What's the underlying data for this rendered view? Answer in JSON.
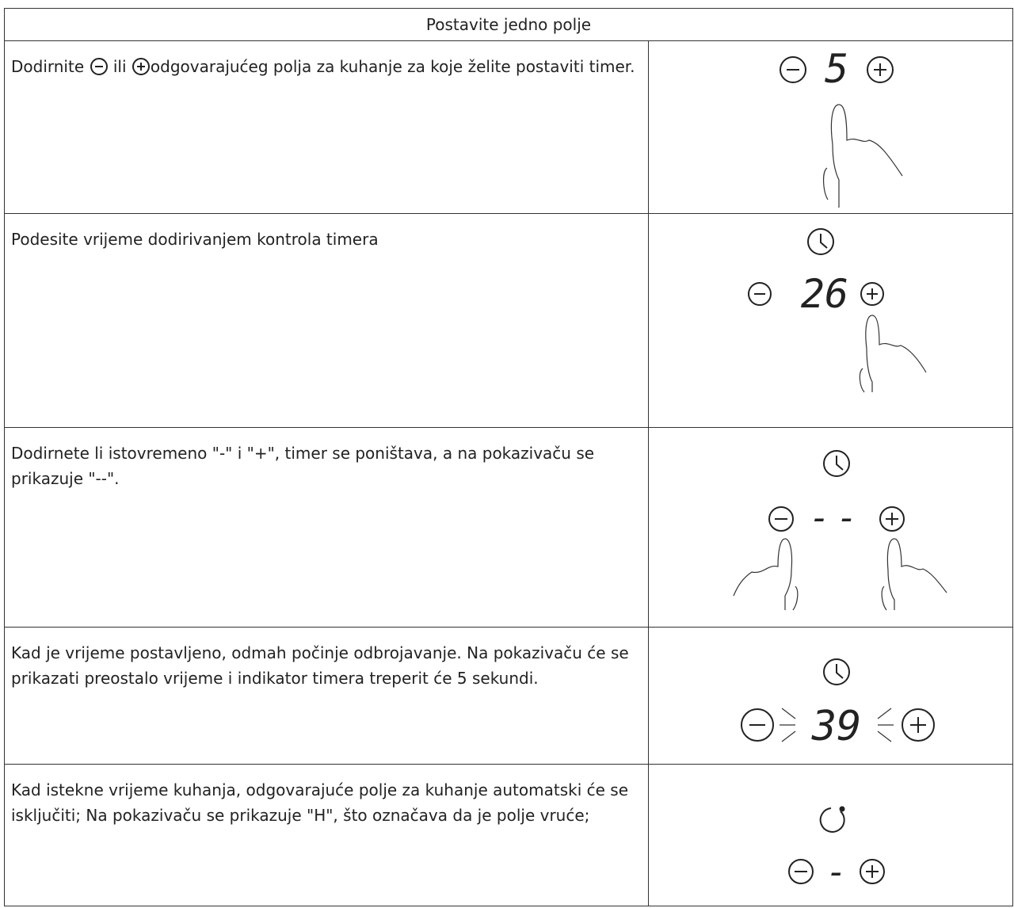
{
  "table": {
    "header": "Postavite jedno polje",
    "rows": [
      {
        "text": [
          "Dodirnite",
          "ili",
          "odgovarajućeg polja za kuhanje za koje želite postaviti timer."
        ],
        "display": "5"
      },
      {
        "text": "Podesite vrijeme dodirivanjem kontrola timera",
        "display": "26"
      },
      {
        "text": "Dodirnete li istovremeno \"-\" i \"+\", timer se poništava, a na pokazivaču se prikazuje \"--\".",
        "display": "--"
      },
      {
        "text": "Kad je vrijeme postavljeno, odmah počinje odbrojavanje. Na pokazivaču će se prikazati preostalo vrijeme i indikator timera treperit će 5 sekundi.",
        "display": "39"
      },
      {
        "text": "Kad istekne vrijeme kuhanja, odgovarajuće polje za kuhanje automatski će se isključiti; Na pokazivaču se prikazuje \"H\", što označava da je polje vruće;",
        "display": "-"
      }
    ]
  }
}
